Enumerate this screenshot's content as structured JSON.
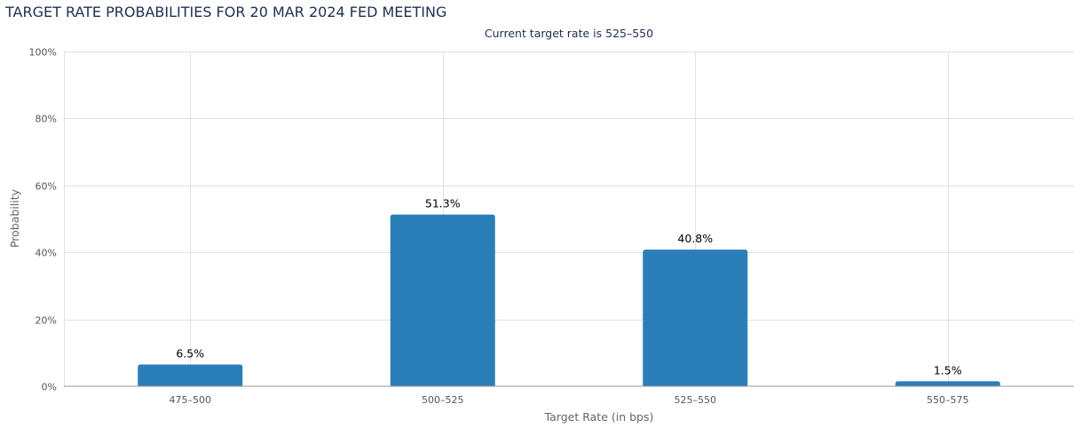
{
  "chart_data": {
    "type": "bar",
    "title": "TARGET RATE PROBABILITIES FOR 20 MAR 2024 FED MEETING",
    "subtitle": "Current target rate is 525–550",
    "xlabel": "Target Rate (in bps)",
    "ylabel": "Probability",
    "categories": [
      "475–500",
      "500–525",
      "525–550",
      "550–575"
    ],
    "values": [
      6.5,
      51.3,
      40.8,
      1.5
    ],
    "data_labels": [
      "6.5%",
      "51.3%",
      "40.8%",
      "1.5%"
    ],
    "ylim": [
      0,
      100
    ],
    "yticks": [
      0,
      20,
      40,
      60,
      80,
      100
    ],
    "ytick_labels": [
      "0%",
      "20%",
      "40%",
      "60%",
      "80%",
      "100%"
    ],
    "grid": true,
    "bar_color": "#2a7fb8"
  }
}
